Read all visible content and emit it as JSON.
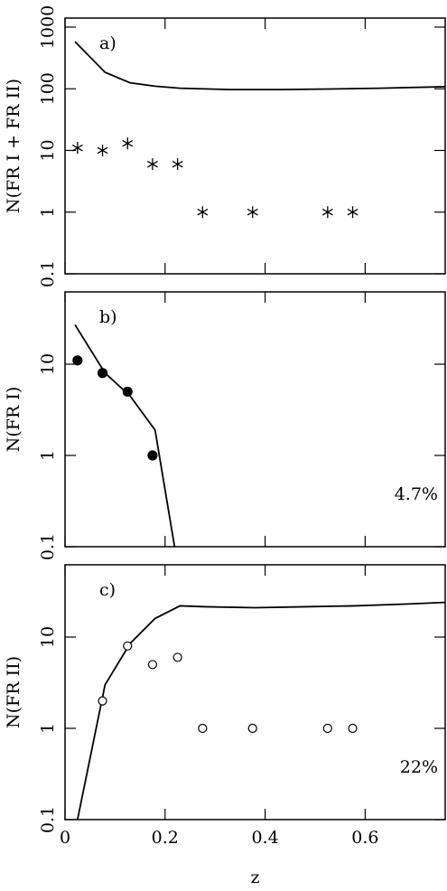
{
  "chart_data": [
    {
      "type": "line",
      "panel_label": "a)",
      "ylabel": "N(FR I + FR II)",
      "log_y": true,
      "xlim": [
        0,
        0.76
      ],
      "ylim": [
        0.1,
        1400
      ],
      "yticks": [
        0.1,
        1,
        10,
        100,
        1000
      ],
      "series": [
        {
          "marker": "none",
          "color": "#000000",
          "x": [
            0.02,
            0.08,
            0.13,
            0.18,
            0.23,
            0.33,
            0.43,
            0.53,
            0.63,
            0.76
          ],
          "values": [
            580,
            185,
            125,
            110,
            102,
            97,
            97,
            99,
            102,
            108
          ]
        },
        {
          "marker": "star",
          "color": "#000000",
          "x": [
            0.025,
            0.075,
            0.125,
            0.175,
            0.225,
            0.275,
            0.375,
            0.525,
            0.575
          ],
          "values": [
            11,
            10,
            13,
            6,
            6,
            1,
            1,
            1,
            1
          ]
        }
      ]
    },
    {
      "type": "line",
      "panel_label": "b)",
      "ylabel": "N(FR I)",
      "annotation": "4.7%",
      "log_y": true,
      "xlim": [
        0,
        0.76
      ],
      "ylim": [
        0.1,
        62
      ],
      "yticks": [
        0.1,
        1,
        10
      ],
      "series": [
        {
          "marker": "none",
          "color": "#000000",
          "x": [
            0.02,
            0.08,
            0.13,
            0.18,
            0.219
          ],
          "values": [
            27,
            8,
            4.5,
            1.9,
            0.1
          ]
        },
        {
          "marker": "filled-circle",
          "color": "#000000",
          "x": [
            0.025,
            0.075,
            0.125,
            0.175
          ],
          "values": [
            11,
            8,
            5,
            1
          ]
        }
      ]
    },
    {
      "type": "line",
      "panel_label": "c)",
      "ylabel": "N(FR II)",
      "annotation": "22%",
      "log_y": true,
      "xlabel": "z",
      "xlim": [
        0,
        0.76
      ],
      "ylim": [
        0.1,
        62
      ],
      "yticks": [
        0.1,
        1,
        10
      ],
      "xticks": [
        0,
        0.2,
        0.4,
        0.6
      ],
      "series": [
        {
          "marker": "none",
          "color": "#000000",
          "x": [
            0.025,
            0.08,
            0.13,
            0.18,
            0.23,
            0.28,
            0.38,
            0.48,
            0.58,
            0.68,
            0.76
          ],
          "values": [
            0.1,
            3,
            8.5,
            16,
            22,
            21.5,
            21,
            21.5,
            22,
            23,
            24
          ]
        },
        {
          "marker": "open-circle",
          "color": "#000000",
          "x": [
            0.075,
            0.125,
            0.175,
            0.225,
            0.275,
            0.375,
            0.525,
            0.575
          ],
          "values": [
            2,
            8,
            5,
            6,
            1,
            1,
            1,
            1
          ]
        }
      ]
    }
  ]
}
